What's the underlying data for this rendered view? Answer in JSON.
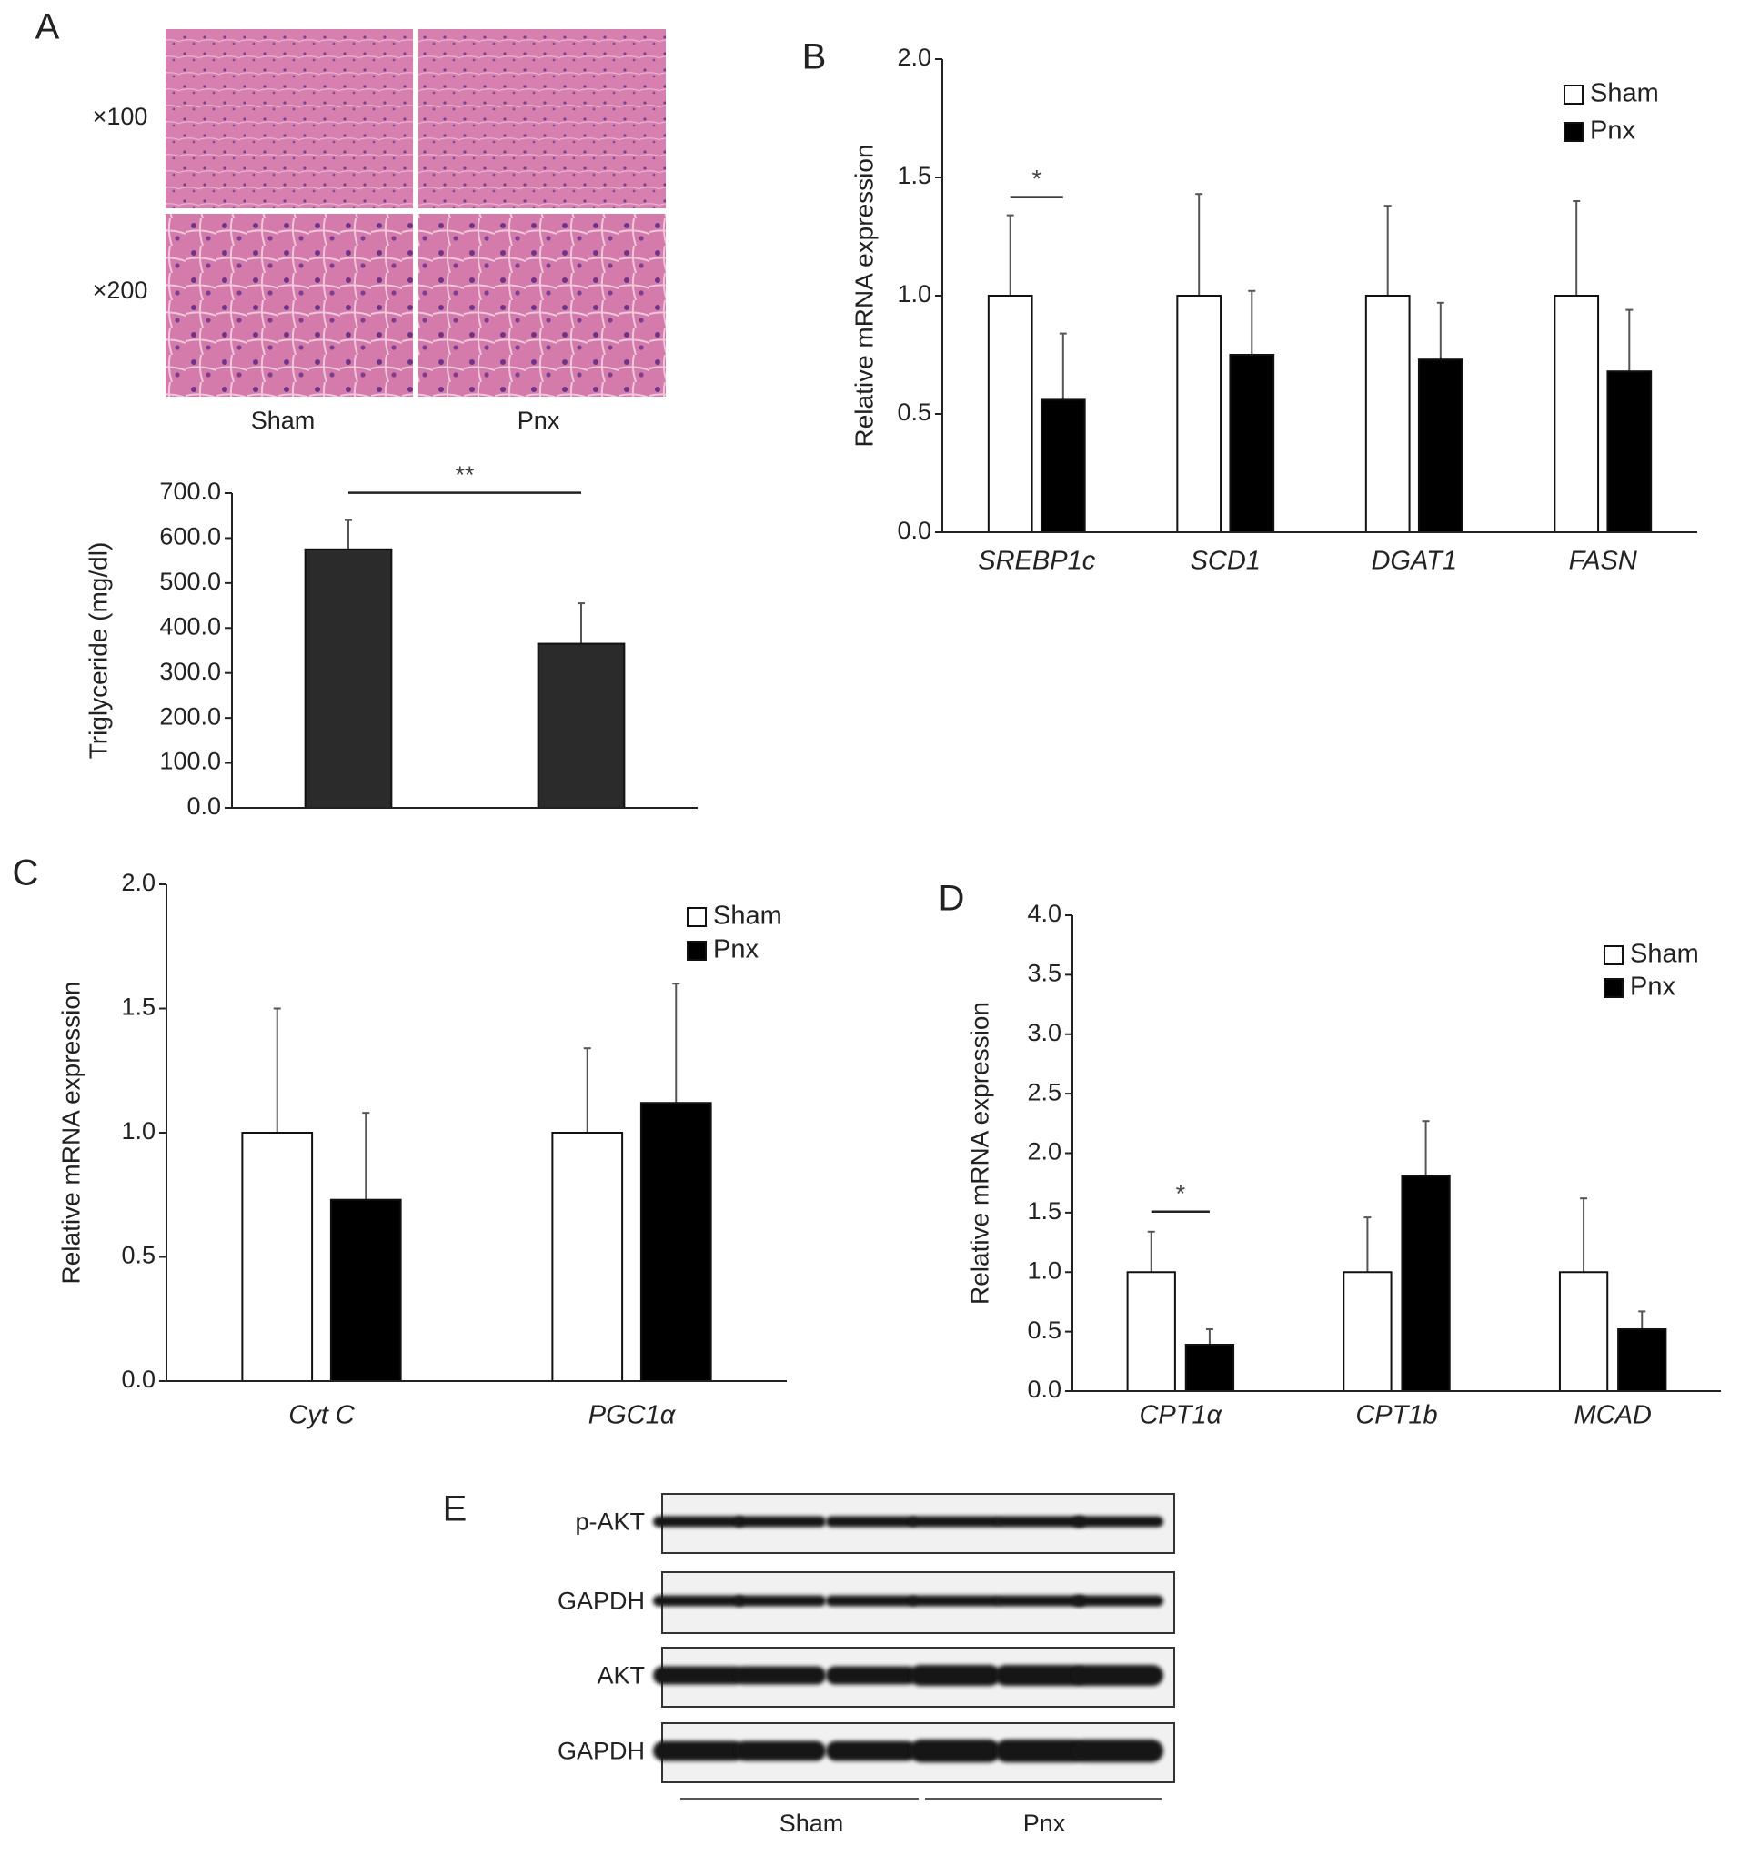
{
  "panel_labels": [
    "A",
    "B",
    "C",
    "D",
    "E"
  ],
  "histology": {
    "magnifications": [
      "×100",
      "×200"
    ],
    "groups": [
      "Sham",
      "Pnx"
    ]
  },
  "chart_data": [
    {
      "type": "bar",
      "ylabel": "Triglyceride (mg/dl)",
      "categories": [
        null,
        null
      ],
      "series": [
        {
          "values": [
            575,
            365
          ],
          "errors": [
            65,
            90
          ],
          "color": "#2b2b2b"
        }
      ],
      "ylim": [
        0,
        700
      ],
      "yticks": [
        {
          "value": 0,
          "label": "0.0"
        },
        {
          "value": 100,
          "label": "100.0"
        },
        {
          "value": 200,
          "label": "200.0"
        },
        {
          "value": 300,
          "label": "300.0"
        },
        {
          "value": 400,
          "label": "400.0"
        },
        {
          "value": 500,
          "label": "500.0"
        },
        {
          "value": 600,
          "label": "600.0"
        },
        {
          "value": 700,
          "label": "700.0"
        }
      ],
      "annotations": [
        "**"
      ]
    },
    {
      "type": "bar",
      "ylabel": "Relative mRNA expression",
      "categories": [
        "SREBP1c",
        "SCD1",
        "DGAT1",
        "FASN"
      ],
      "series": [
        {
          "name": "Sham",
          "color": "#ffffff",
          "values": [
            1,
            1,
            1,
            1
          ],
          "errors": [
            0.34,
            0.43,
            0.38,
            0.4
          ]
        },
        {
          "name": "Pnx",
          "color": "#000000",
          "values": [
            0.56,
            0.75,
            0.73,
            0.68
          ],
          "errors": [
            0.28,
            0.27,
            0.24,
            0.26
          ]
        }
      ],
      "ylim": [
        0,
        2
      ],
      "yticks": [
        {
          "value": 0,
          "label": "0.0"
        },
        {
          "value": 0.5,
          "label": "0.5"
        },
        {
          "value": 1,
          "label": "1.0"
        },
        {
          "value": 1.5,
          "label": "1.5"
        },
        {
          "value": 2,
          "label": "2.0"
        }
      ],
      "legend": "upper right",
      "annotations": [
        "*"
      ]
    },
    {
      "type": "bar",
      "ylabel": "Relative mRNA expression",
      "categories": [
        "Cyt C",
        "PGC1α"
      ],
      "series": [
        {
          "name": "Sham",
          "color": "#ffffff",
          "values": [
            1,
            1
          ],
          "errors": [
            0.5,
            0.34
          ]
        },
        {
          "name": "Pnx",
          "color": "#000000",
          "values": [
            0.73,
            1.12
          ],
          "errors": [
            0.35,
            0.48
          ]
        }
      ],
      "ylim": [
        0,
        2
      ],
      "yticks": [
        {
          "value": 0,
          "label": "0.0"
        },
        {
          "value": 0.5,
          "label": "0.5"
        },
        {
          "value": 1,
          "label": "1.0"
        },
        {
          "value": 1.5,
          "label": "1.5"
        },
        {
          "value": 2,
          "label": "2.0"
        }
      ],
      "legend": "upper right"
    },
    {
      "type": "bar",
      "ylabel": "Relative mRNA expression",
      "categories": [
        "CPT1α",
        "CPT1b",
        "MCAD"
      ],
      "series": [
        {
          "name": "Sham",
          "color": "#ffffff",
          "values": [
            1,
            1,
            1
          ],
          "errors": [
            0.34,
            0.46,
            0.62
          ]
        },
        {
          "name": "Pnx",
          "color": "#000000",
          "values": [
            0.39,
            1.81,
            0.52
          ],
          "errors": [
            0.13,
            0.46,
            0.15
          ]
        }
      ],
      "ylim": [
        0,
        4
      ],
      "yticks": [
        {
          "value": 0,
          "label": "0.0"
        },
        {
          "value": 0.5,
          "label": "0.5"
        },
        {
          "value": 1,
          "label": "1.0"
        },
        {
          "value": 1.5,
          "label": "1.5"
        },
        {
          "value": 2,
          "label": "2.0"
        },
        {
          "value": 2.5,
          "label": "2.5"
        },
        {
          "value": 3,
          "label": "3.0"
        },
        {
          "value": 3.5,
          "label": "3.5"
        },
        {
          "value": 4,
          "label": "4.0"
        }
      ],
      "legend": "upper right",
      "annotations": [
        "*"
      ]
    }
  ],
  "western_blot": {
    "rows": [
      "p-AKT",
      "GAPDH",
      "AKT",
      "GAPDH"
    ],
    "groups": [
      "Sham",
      "Pnx"
    ]
  }
}
